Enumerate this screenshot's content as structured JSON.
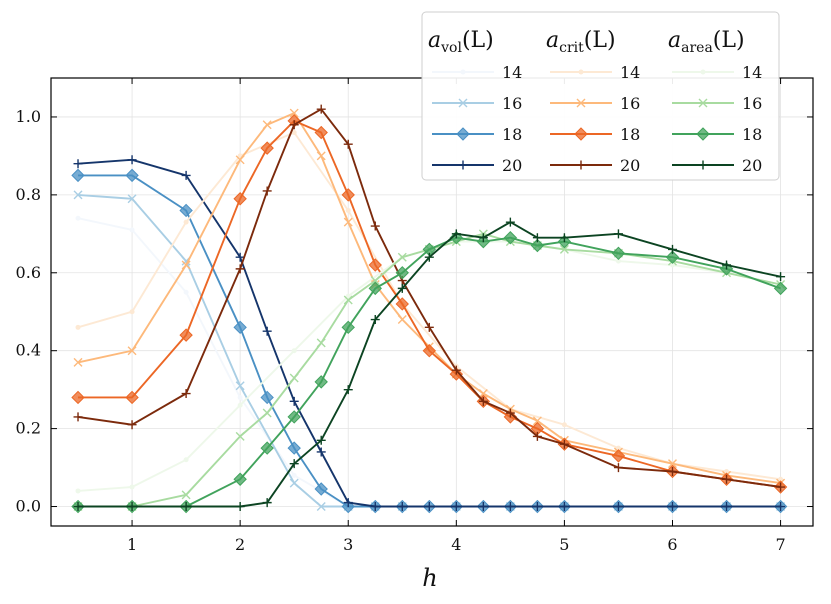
{
  "chart_data": {
    "type": "line",
    "title": "",
    "xlabel": "h",
    "ylabel": "",
    "xlim": [
      0.25,
      7.3
    ],
    "ylim": [
      -0.05,
      1.1
    ],
    "xticks": [
      1,
      2,
      3,
      4,
      5,
      6,
      7
    ],
    "yticks": [
      0.0,
      0.2,
      0.4,
      0.6,
      0.8,
      1.0
    ],
    "xtick_labels": [
      "1",
      "2",
      "3",
      "4",
      "5",
      "6",
      "7"
    ],
    "ytick_labels": [
      "0.0",
      "0.2",
      "0.4",
      "0.6",
      "0.8",
      "1.0"
    ],
    "grid": true,
    "legend": {
      "placement": "top-right",
      "groups": [
        {
          "title_main": "a",
          "title_sub": "vol",
          "title_tail": "(L)",
          "family": "vol"
        },
        {
          "title_main": "a",
          "title_sub": "crit",
          "title_tail": "(L)",
          "family": "crit"
        },
        {
          "title_main": "a",
          "title_sub": "area",
          "title_tail": "(L)",
          "family": "area"
        }
      ],
      "labels": [
        "14",
        "16",
        "18",
        "20"
      ]
    },
    "series": [
      {
        "name": "14",
        "family": "vol",
        "color": "#f3f7fc",
        "marker": "dot",
        "x": [
          0.5,
          1,
          1.5,
          2,
          2.5,
          3,
          3.5,
          4,
          4.5,
          5,
          5.5,
          6,
          6.5,
          7
        ],
        "y": [
          0.74,
          0.71,
          0.55,
          0.28,
          0.08,
          0,
          0,
          0,
          0,
          0,
          0,
          0,
          0,
          0
        ]
      },
      {
        "name": "16",
        "family": "vol",
        "color": "#a9cee4",
        "marker": "x",
        "x": [
          0.5,
          1,
          1.5,
          2,
          2.5,
          2.75,
          3,
          3.25,
          3.5,
          4,
          4.5,
          5,
          5.5,
          6,
          6.5,
          7
        ],
        "y": [
          0.8,
          0.79,
          0.63,
          0.31,
          0.06,
          0,
          0,
          0,
          0,
          0,
          0,
          0,
          0,
          0,
          0,
          0
        ]
      },
      {
        "name": "18",
        "family": "vol",
        "color": "#4a90c4",
        "marker": "diamond",
        "x": [
          0.5,
          1,
          1.5,
          2,
          2.25,
          2.5,
          2.75,
          3,
          3.25,
          3.5,
          3.75,
          4,
          4.25,
          4.5,
          4.75,
          5,
          5.5,
          6,
          6.5,
          7
        ],
        "y": [
          0.85,
          0.85,
          0.76,
          0.46,
          0.28,
          0.15,
          0.045,
          0,
          0,
          0,
          0,
          0,
          0,
          0,
          0,
          0,
          0,
          0,
          0,
          0
        ]
      },
      {
        "name": "20",
        "family": "vol",
        "color": "#15356b",
        "marker": "plus",
        "x": [
          0.5,
          1,
          1.5,
          2,
          2.25,
          2.5,
          2.75,
          3,
          3.25,
          3.5,
          3.75,
          4,
          4.25,
          4.5,
          4.75,
          5,
          5.5,
          6,
          6.5,
          7
        ],
        "y": [
          0.88,
          0.89,
          0.85,
          0.64,
          0.45,
          0.27,
          0.14,
          0.01,
          0,
          0,
          0,
          0,
          0,
          0,
          0,
          0,
          0,
          0,
          0,
          0
        ]
      },
      {
        "name": "14",
        "family": "crit",
        "color": "#fde9d4",
        "marker": "dot",
        "x": [
          0.5,
          1,
          1.5,
          2,
          2.5,
          3,
          3.5,
          4,
          4.5,
          5,
          5.5,
          6,
          6.5,
          7
        ],
        "y": [
          0.46,
          0.5,
          0.73,
          0.9,
          0.96,
          0.76,
          0.52,
          0.36,
          0.25,
          0.21,
          0.15,
          0.11,
          0.09,
          0.07
        ]
      },
      {
        "name": "16",
        "family": "crit",
        "color": "#fdb97b",
        "marker": "x",
        "x": [
          0.5,
          1,
          1.5,
          2,
          2.25,
          2.5,
          2.75,
          3,
          3.25,
          3.5,
          3.75,
          4,
          4.25,
          4.5,
          4.75,
          5,
          5.5,
          6,
          6.5,
          7
        ],
        "y": [
          0.37,
          0.4,
          0.62,
          0.89,
          0.98,
          1.01,
          0.9,
          0.73,
          0.57,
          0.48,
          0.41,
          0.34,
          0.29,
          0.25,
          0.22,
          0.17,
          0.14,
          0.11,
          0.08,
          0.06
        ]
      },
      {
        "name": "18",
        "family": "crit",
        "color": "#ec6725",
        "marker": "diamond",
        "x": [
          0.5,
          1,
          1.5,
          2,
          2.25,
          2.5,
          2.75,
          3,
          3.25,
          3.5,
          3.75,
          4,
          4.25,
          4.5,
          4.75,
          5,
          5.5,
          6,
          6.5,
          7
        ],
        "y": [
          0.28,
          0.28,
          0.44,
          0.79,
          0.92,
          0.99,
          0.96,
          0.8,
          0.62,
          0.52,
          0.4,
          0.34,
          0.27,
          0.23,
          0.2,
          0.16,
          0.13,
          0.09,
          0.07,
          0.05
        ]
      },
      {
        "name": "20",
        "family": "crit",
        "color": "#7c2a0c",
        "marker": "plus",
        "x": [
          0.5,
          1,
          1.5,
          2,
          2.25,
          2.5,
          2.75,
          3,
          3.25,
          3.5,
          3.75,
          4,
          4.25,
          4.5,
          4.75,
          5,
          5.5,
          6,
          6.5,
          7
        ],
        "y": [
          0.23,
          0.21,
          0.29,
          0.61,
          0.81,
          0.98,
          1.02,
          0.93,
          0.72,
          0.58,
          0.46,
          0.35,
          0.27,
          0.24,
          0.18,
          0.16,
          0.1,
          0.09,
          0.07,
          0.05
        ]
      },
      {
        "name": "14",
        "family": "area",
        "color": "#eef8ea",
        "marker": "dot",
        "x": [
          0.5,
          1,
          1.5,
          2,
          2.5,
          3,
          3.5,
          4,
          4.5,
          5,
          5.5,
          6,
          6.5,
          7
        ],
        "y": [
          0.04,
          0.05,
          0.12,
          0.26,
          0.4,
          0.54,
          0.64,
          0.68,
          0.68,
          0.66,
          0.63,
          0.62,
          0.6,
          0.57
        ]
      },
      {
        "name": "16",
        "family": "area",
        "color": "#a8dba0",
        "marker": "x",
        "x": [
          0.5,
          1,
          1.5,
          2,
          2.25,
          2.5,
          2.75,
          3,
          3.25,
          3.5,
          3.75,
          4,
          4.25,
          4.5,
          4.75,
          5,
          5.5,
          6,
          6.5,
          7
        ],
        "y": [
          0,
          0,
          0.03,
          0.18,
          0.24,
          0.33,
          0.42,
          0.53,
          0.58,
          0.64,
          0.66,
          0.68,
          0.7,
          0.68,
          0.67,
          0.66,
          0.65,
          0.63,
          0.6,
          0.57
        ]
      },
      {
        "name": "18",
        "family": "area",
        "color": "#41a35c",
        "marker": "diamond",
        "x": [
          0.5,
          1,
          1.5,
          2,
          2.25,
          2.5,
          2.75,
          3,
          3.25,
          3.5,
          3.75,
          4,
          4.25,
          4.5,
          4.75,
          5,
          5.5,
          6,
          6.5,
          7
        ],
        "y": [
          0,
          0,
          0,
          0.07,
          0.15,
          0.23,
          0.32,
          0.46,
          0.56,
          0.6,
          0.66,
          0.69,
          0.68,
          0.69,
          0.67,
          0.68,
          0.65,
          0.64,
          0.61,
          0.56
        ]
      },
      {
        "name": "20",
        "family": "area",
        "color": "#0c4422",
        "marker": "plus",
        "x": [
          0.5,
          1,
          1.5,
          2,
          2.25,
          2.5,
          2.75,
          3,
          3.25,
          3.5,
          3.75,
          4,
          4.25,
          4.5,
          4.75,
          5,
          5.5,
          6,
          6.5,
          7
        ],
        "y": [
          0,
          0,
          0,
          0,
          0.01,
          0.11,
          0.17,
          0.3,
          0.48,
          0.56,
          0.64,
          0.7,
          0.69,
          0.73,
          0.69,
          0.69,
          0.7,
          0.66,
          0.62,
          0.59
        ]
      }
    ]
  }
}
